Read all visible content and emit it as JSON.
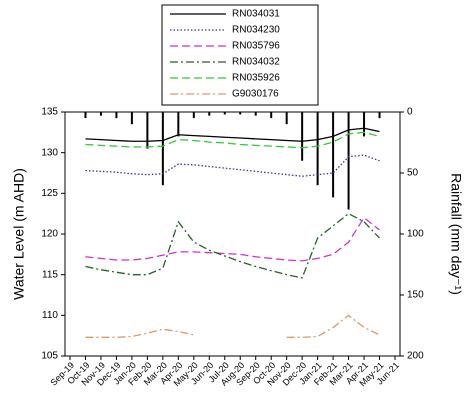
{
  "chart_data": {
    "type": "line",
    "y_label": "Water Level (m AHD)",
    "y2_label": "Rainfall (mm day⁻¹)",
    "categories": [
      "Sep-19",
      "Oct-19",
      "Nov-19",
      "Dec-19",
      "Jan-20",
      "Feb-20",
      "Mar-20",
      "Apr-20",
      "May-20",
      "Jun-20",
      "Jul-20",
      "Aug-20",
      "Sep-20",
      "Oct-20",
      "Nov-20",
      "Dec-20",
      "Jan-21",
      "Feb-21",
      "Mar-21",
      "Apr-21",
      "May-21",
      "Jun-21"
    ],
    "ylim": [
      105,
      135
    ],
    "yticks": [
      105,
      110,
      115,
      120,
      125,
      130,
      135
    ],
    "y2lim": [
      200,
      0
    ],
    "y2ticks": [
      0,
      50,
      100,
      150,
      200
    ],
    "series": [
      {
        "name": "RN034031",
        "color": "#000000",
        "style": "solid",
        "values": [
          null,
          131.7,
          131.6,
          131.5,
          131.4,
          131.4,
          131.5,
          132.2,
          132.1,
          132.0,
          131.9,
          131.8,
          131.7,
          131.6,
          131.5,
          131.4,
          131.6,
          132.0,
          132.8,
          133.0,
          132.6,
          null
        ]
      },
      {
        "name": "RN034230",
        "color": "#3333aa",
        "style": "dotted",
        "values": [
          null,
          127.8,
          127.7,
          127.6,
          127.4,
          127.3,
          127.4,
          128.6,
          128.5,
          128.3,
          128.1,
          127.9,
          127.7,
          127.5,
          127.3,
          127.1,
          127.3,
          127.5,
          129.5,
          129.7,
          129.0,
          null
        ]
      },
      {
        "name": "RN035796",
        "color": "#cc33cc",
        "style": "dashed",
        "values": [
          null,
          117.2,
          117.0,
          116.8,
          116.8,
          117.0,
          117.4,
          117.8,
          117.8,
          117.7,
          117.6,
          117.5,
          117.2,
          117.0,
          116.8,
          116.7,
          117.0,
          117.5,
          119.0,
          122.0,
          120.5,
          null
        ]
      },
      {
        "name": "RN034032",
        "color": "#226622",
        "style": "dashdot",
        "values": [
          null,
          116.0,
          115.6,
          115.3,
          115.0,
          115.0,
          115.8,
          121.5,
          119.0,
          118.0,
          117.3,
          116.6,
          116.0,
          115.5,
          115.0,
          114.6,
          119.5,
          121.0,
          122.5,
          121.5,
          119.5,
          null
        ]
      },
      {
        "name": "RN035926",
        "color": "#33cc33",
        "style": "dashed",
        "values": [
          null,
          131.0,
          130.9,
          130.8,
          130.7,
          130.7,
          130.8,
          131.6,
          131.5,
          131.3,
          131.2,
          131.0,
          130.9,
          130.8,
          130.7,
          130.6,
          130.8,
          131.3,
          132.3,
          132.5,
          132.0,
          null
        ]
      },
      {
        "name": "G9030176",
        "color": "#dd9966",
        "style": "dashdot",
        "values": [
          null,
          107.3,
          107.3,
          107.3,
          107.4,
          107.8,
          108.3,
          108.0,
          107.6,
          null,
          null,
          null,
          null,
          null,
          107.3,
          107.3,
          107.4,
          108.5,
          110.0,
          108.5,
          107.6,
          null
        ]
      }
    ],
    "rainfall": {
      "color": "#000000",
      "axis": "y2",
      "values": [
        null,
        5,
        3,
        5,
        10,
        30,
        60,
        20,
        5,
        3,
        2,
        2,
        3,
        5,
        10,
        40,
        60,
        70,
        80,
        20,
        5,
        null
      ]
    }
  }
}
